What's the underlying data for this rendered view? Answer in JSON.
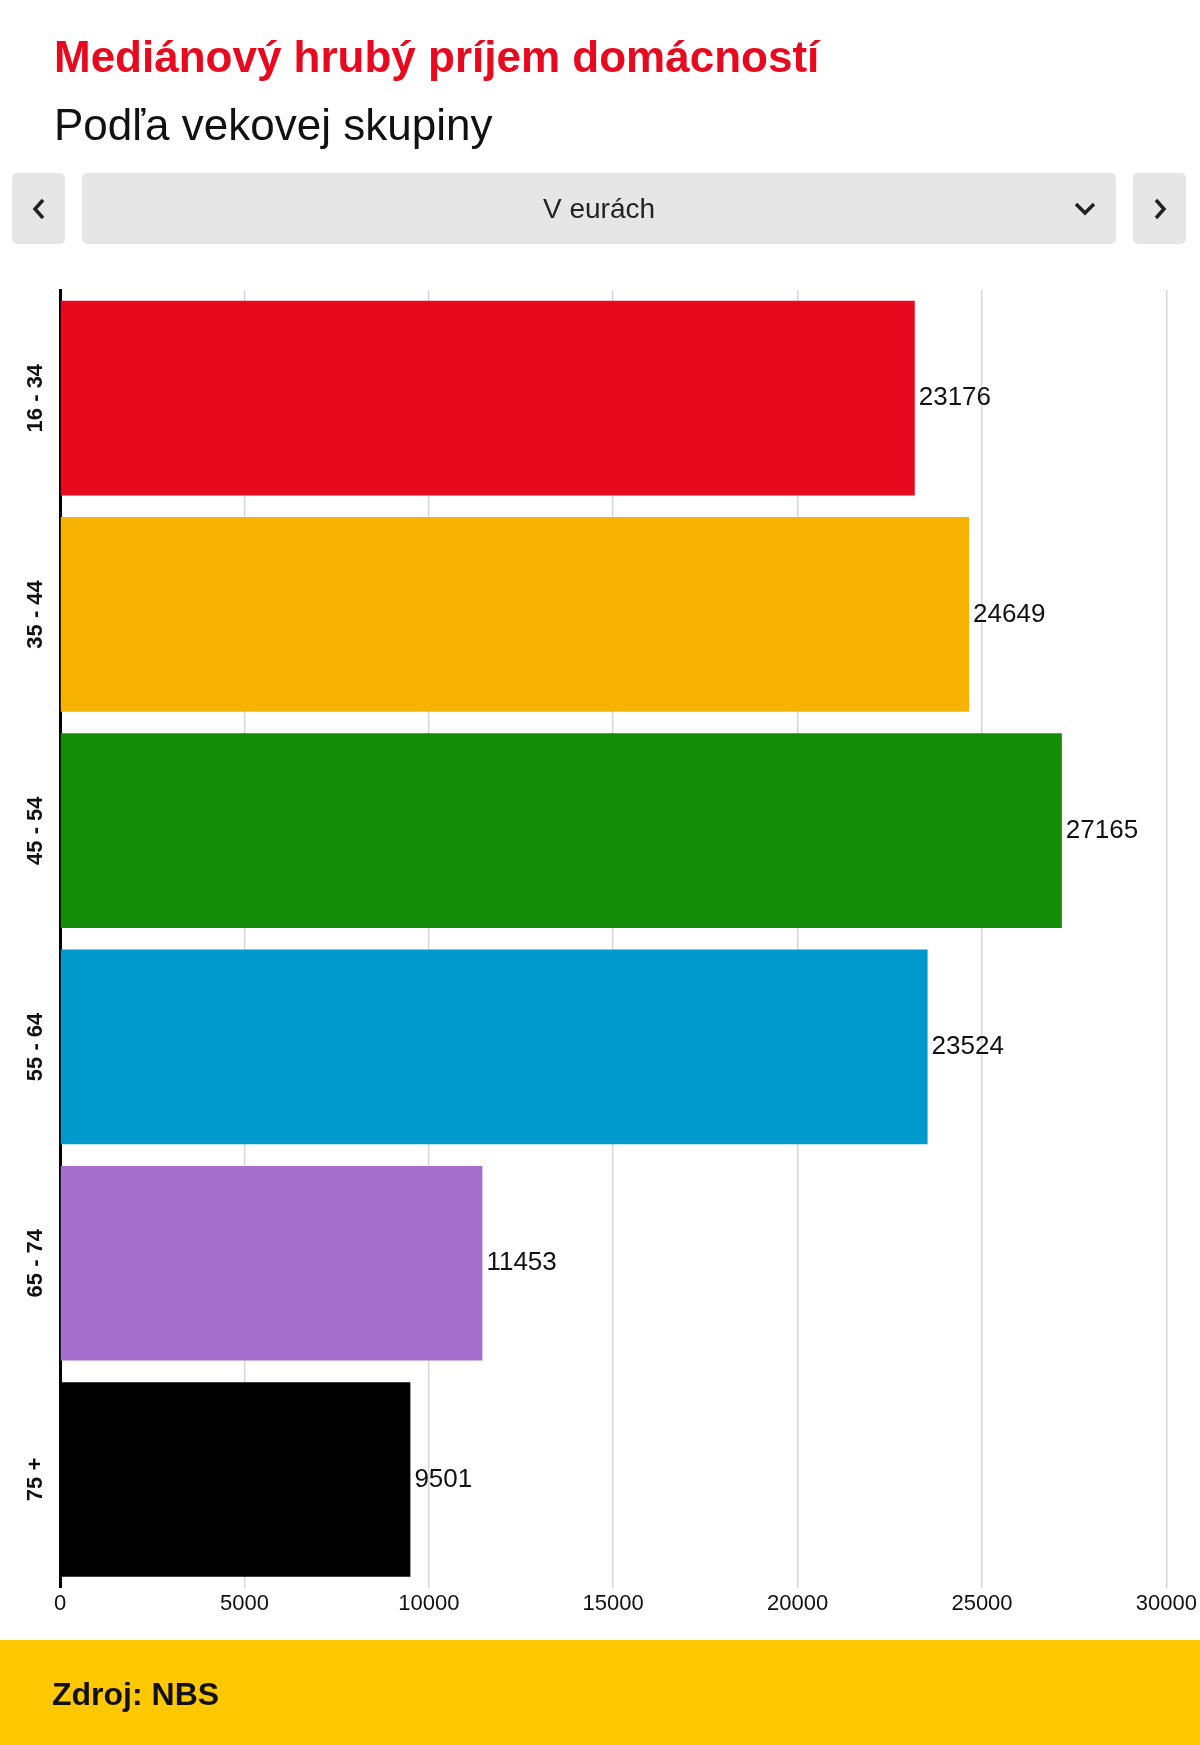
{
  "chart_data": {
    "type": "bar",
    "orientation": "horizontal",
    "title": "Mediánový hrubý príjem domácností",
    "subtitle": "Podľa vekovej skupiny",
    "categories": [
      "16 - 34",
      "35 - 44",
      "45 - 54",
      "55 - 64",
      "65 - 74",
      "75 +"
    ],
    "values": [
      23176,
      24649,
      27165,
      23524,
      11453,
      9501
    ],
    "colors": [
      "#e8091e",
      "#f7b100",
      "#138c07",
      "#0099cc",
      "#a66fce",
      "#000000"
    ],
    "xlim": [
      0,
      30000
    ],
    "xticks": [
      0,
      5000,
      10000,
      15000,
      20000,
      25000,
      30000
    ],
    "grid": "x",
    "data_labels": true,
    "annotations": [
      "V eurách",
      "Zdroj: NBS"
    ]
  }
}
